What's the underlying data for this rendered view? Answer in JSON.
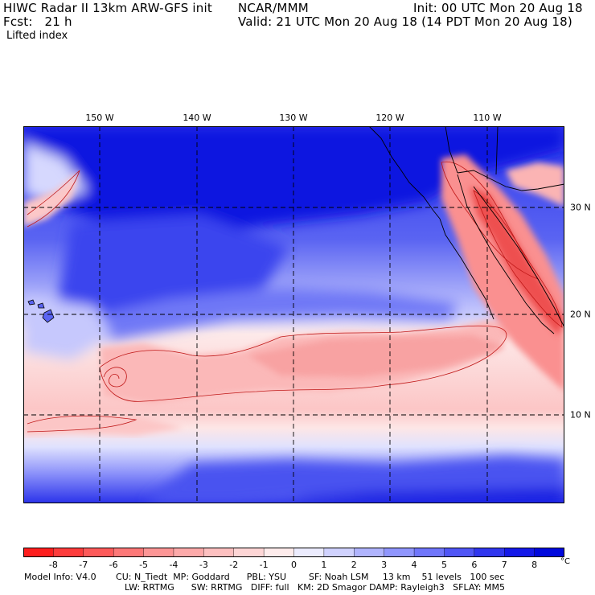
{
  "header": {
    "line1_left": "HIWC Radar II 13km ARW-GFS init",
    "line1_center": "NCAR/MMM",
    "line1_right": "Init: 00 UTC Mon 20 Aug 18",
    "line2_left": "Fcst:   21 h",
    "line2_right": "Valid: 21 UTC Mon 20 Aug 18 (14 PDT Mon 20 Aug 18)",
    "field_name": "Lifted index"
  },
  "map": {
    "lon_labels": [
      "150 W",
      "140 W",
      "130 W",
      "120 W",
      "110 W"
    ],
    "lat_labels": [
      "30 N",
      "20 N",
      "10 N"
    ],
    "grid_style": "dashed"
  },
  "colorbar": {
    "ticks": [
      "-8",
      "-7",
      "-6",
      "-5",
      "-4",
      "-3",
      "-2",
      "-1",
      "0",
      "1",
      "2",
      "3",
      "4",
      "5",
      "6",
      "7",
      "8"
    ],
    "unit": "°C",
    "colors": [
      "#fe1e1e",
      "#fe3c3c",
      "#fe5a5a",
      "#fd7878",
      "#fd9696",
      "#fdaaaa",
      "#fdc0c0",
      "#fed6d6",
      "#feecec",
      "#ececfe",
      "#d0d2fe",
      "#b0b4fe",
      "#9096fe",
      "#7076fb",
      "#5056f6",
      "#3036ee",
      "#1418e8",
      "#0008dc"
    ]
  },
  "info": {
    "line1": "Model Info: V4.0       CU: N_Tiedt  MP: Goddard      PBL: YSU        SF: Noah LSM     13 km    51 levels   100 sec",
    "line2": "LW: RRTMG      SW: RRTMG   DIFF: full   KM: 2D Smagor DAMP: Rayleigh3   SFLAY: MM5"
  },
  "colors": {
    "deep_blue": "#0a14e0",
    "mid_blue": "#5a64f2",
    "light_blue": "#b4b8fc",
    "pale_blue": "#e0e2fe",
    "pale_red": "#fde0e0",
    "light_red": "#fcb0b0",
    "mid_red": "#fa8282",
    "deep_red": "#f04848"
  }
}
